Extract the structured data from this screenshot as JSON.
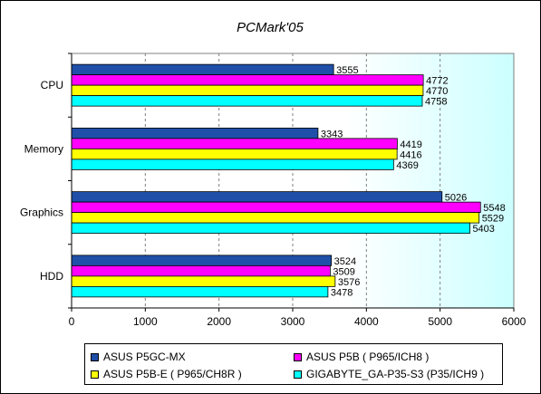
{
  "chart_data": {
    "type": "bar",
    "orientation": "horizontal",
    "title": "PCMark'05",
    "categories": [
      "CPU",
      "Memory",
      "Graphics",
      "HDD"
    ],
    "series": [
      {
        "name": "ASUS P5GC-MX",
        "color": "#1f4fa8",
        "values": [
          3555,
          3343,
          5026,
          3524
        ]
      },
      {
        "name": "ASUS P5B ( P965/ICH8 )",
        "color": "#ff00ff",
        "values": [
          4772,
          4419,
          5548,
          3509
        ]
      },
      {
        "name": "ASUS P5B-E ( P965/CH8R )",
        "color": "#ffff00",
        "values": [
          4770,
          4416,
          5529,
          3576
        ]
      },
      {
        "name": "GIGABYTE_GA-P35-S3 (P35/ICH9 )",
        "color": "#00ffff",
        "values": [
          4758,
          4369,
          5403,
          3478
        ]
      }
    ],
    "xlim": [
      0,
      6000
    ],
    "xticks": [
      0,
      1000,
      2000,
      3000,
      4000,
      5000,
      6000
    ],
    "grid": "vertical-dashed",
    "legend_position": "bottom",
    "plot_background_gradient": [
      "#ffffff",
      "#ccffff"
    ]
  }
}
